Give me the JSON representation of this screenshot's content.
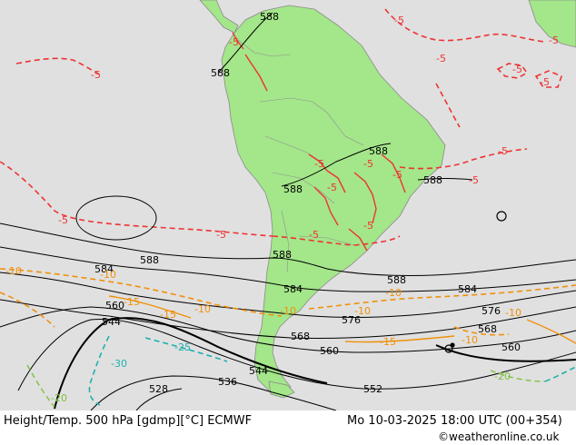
{
  "colors": {
    "ocean": "#e0e0e0",
    "land": "#a4e68a",
    "height_contour": "#000000",
    "temp_minus5": "#ee3333",
    "temp_minus10": "#f0900a",
    "temp_minus15": "#f0900a",
    "temp_minus20": "#80c040",
    "temp_minus25": "#20b0b0",
    "temp_minus30": "#20b0b0"
  },
  "icons": {
    "height_contour": "line-contour-icon"
  },
  "height_labels": {
    "h588_a": "588",
    "h588_b": "588",
    "h588_c": "588",
    "h588_d": "588",
    "h588_e": "588",
    "h588_f": "588",
    "h588_g": "588",
    "h588_h": "588",
    "h584_a": "584",
    "h584_b": "584",
    "h584_c": "584",
    "h576_a": "576",
    "h576_b": "576",
    "h568_a": "568",
    "h568_b": "568",
    "h560_a": "560",
    "h560_b": "560",
    "h560_c": "560",
    "h552": "552",
    "h544_a": "544",
    "h544_b": "544",
    "h536": "536",
    "h528": "528"
  },
  "temp_labels": {
    "t5_a": "-5",
    "t5_b": "-5",
    "t5_c": "-5",
    "t5_d": "-5",
    "t5_e": "-5",
    "t5_f": "-5",
    "t5_g": "-5",
    "t5_h": "-5",
    "t5_i": "-5",
    "t5_j": "-5",
    "t5_k": "-5",
    "t5_l": "-5",
    "t5_m": "-5",
    "t5_n": "-5",
    "t5_o": "-5",
    "t5_p": "-5",
    "t5_q": "-5",
    "t10_a": "-10",
    "t10_b": "-10",
    "t10_c": "-10",
    "t10_d": "-10",
    "t10_e": "-10",
    "t10_f": "-10",
    "t10_g": "-10",
    "t10_h": "-10",
    "t15_a": "-15",
    "t15_b": "-15",
    "t15_c": "-15",
    "t20_a": "-20",
    "t20_b": "-20",
    "t25": "-25",
    "t30": "-30"
  },
  "footer": {
    "title": "Height/Temp. 500 hPa [gdmp][°C] ECMWF",
    "valid_time": "Mo 10-03-2025 18:00 UTC (00+354)",
    "credit": "©weatheronline.co.uk"
  }
}
